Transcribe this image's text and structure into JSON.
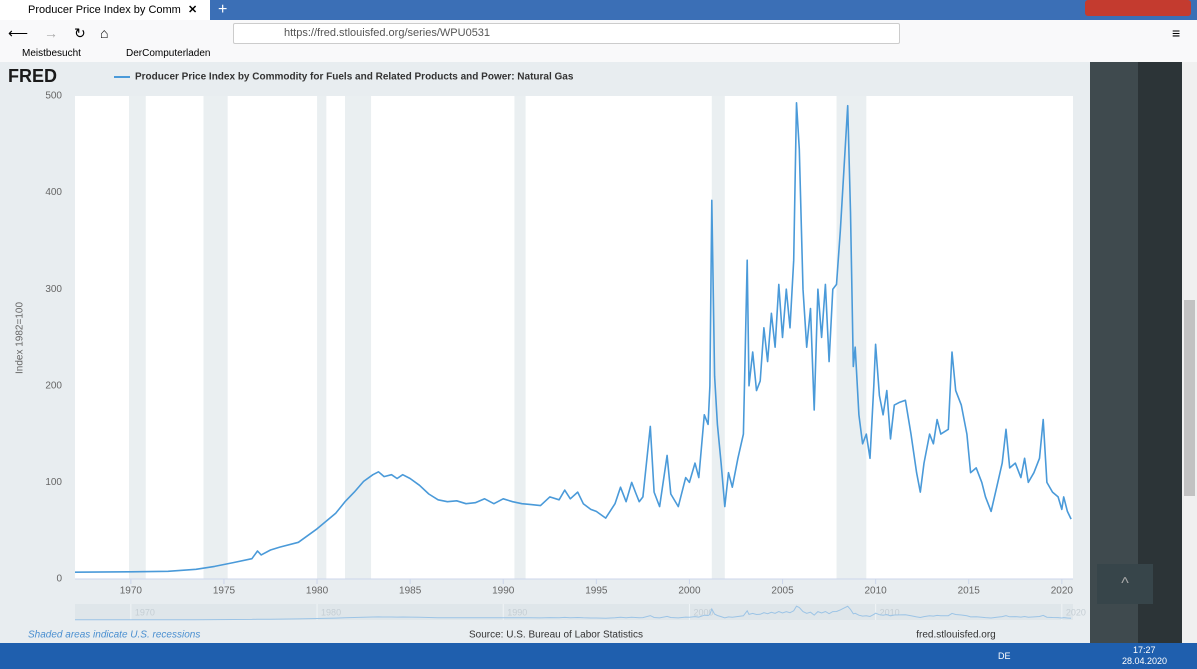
{
  "browser": {
    "tab_title": "Producer Price Index by Comm",
    "url": "https://fred.stlouisfed.org/series/WPU0531",
    "bookmarks": [
      "Meistbesucht",
      "DerComputerladen"
    ]
  },
  "page": {
    "logo": "FRED",
    "footer_note": "Shaded areas indicate U.S. recessions",
    "source": "Source: U.S. Bureau of Labor Statistics",
    "site": "fred.stlouisfed.org"
  },
  "taskbar": {
    "language": "DE",
    "time": "17:27",
    "date": "28.04.2020"
  },
  "chart_data": {
    "type": "line",
    "series": [
      {
        "name": "Producer Price Index by Commodity for Fuels and Related Products and Power: Natural Gas",
        "color": "#4a9ad9",
        "x": [
          1967,
          1970,
          1972,
          1973.5,
          1974.5,
          1975.5,
          1976.5,
          1976.8,
          1977,
          1977.5,
          1978,
          1979,
          1980,
          1981,
          1981.5,
          1982,
          1982.5,
          1983,
          1983.3,
          1983.6,
          1984,
          1984.3,
          1984.6,
          1985,
          1985.5,
          1986,
          1986.5,
          1987,
          1987.5,
          1988,
          1988.5,
          1989,
          1989.5,
          1990,
          1990.5,
          1991,
          1991.5,
          1992,
          1992.5,
          1993,
          1993.3,
          1993.6,
          1994,
          1994.3,
          1994.7,
          1995,
          1995.5,
          1996,
          1996.3,
          1996.6,
          1996.9,
          1997.1,
          1997.3,
          1997.5,
          1997.9,
          1998.1,
          1998.4,
          1998.8,
          1999,
          1999.4,
          1999.8,
          2000,
          2000.3,
          2000.5,
          2000.8,
          2001,
          2001.1,
          2001.2,
          2001.35,
          2001.5,
          2001.7,
          2001.9,
          2002.1,
          2002.3,
          2002.6,
          2002.9,
          2003.1,
          2003.2,
          2003.4,
          2003.6,
          2003.8,
          2004,
          2004.2,
          2004.4,
          2004.6,
          2004.8,
          2005,
          2005.2,
          2005.4,
          2005.6,
          2005.75,
          2005.9,
          2006.1,
          2006.3,
          2006.5,
          2006.7,
          2006.9,
          2007.1,
          2007.3,
          2007.5,
          2007.7,
          2007.9,
          2008.1,
          2008.3,
          2008.5,
          2008.65,
          2008.8,
          2008.9,
          2009.1,
          2009.3,
          2009.5,
          2009.7,
          2009.9,
          2010,
          2010.2,
          2010.4,
          2010.6,
          2010.8,
          2011,
          2011.3,
          2011.6,
          2011.9,
          2012.2,
          2012.4,
          2012.6,
          2012.9,
          2013.1,
          2013.3,
          2013.5,
          2013.9,
          2014.1,
          2014.3,
          2014.6,
          2014.9,
          2015.1,
          2015.4,
          2015.7,
          2015.9,
          2016.2,
          2016.5,
          2016.8,
          2017,
          2017.2,
          2017.5,
          2017.8,
          2018,
          2018.2,
          2018.5,
          2018.8,
          2019,
          2019.2,
          2019.5,
          2019.8,
          2020,
          2020.1,
          2020.3,
          2020.5
        ],
        "values": [
          7,
          7.5,
          8,
          10,
          13,
          17,
          21,
          29,
          25,
          30,
          33,
          38,
          52,
          68,
          80,
          90,
          101,
          108,
          111,
          106,
          108,
          104,
          108,
          104,
          97,
          88,
          82,
          80,
          81,
          78,
          79,
          83,
          78,
          83,
          80,
          78,
          77,
          76,
          85,
          82,
          92,
          83,
          90,
          78,
          72,
          70,
          63,
          78,
          95,
          80,
          100,
          90,
          80,
          85,
          158,
          90,
          75,
          128,
          88,
          75,
          105,
          100,
          120,
          105,
          170,
          160,
          200,
          392,
          210,
          160,
          120,
          75,
          110,
          95,
          125,
          150,
          330,
          200,
          235,
          195,
          205,
          260,
          225,
          275,
          240,
          305,
          250,
          300,
          260,
          330,
          493,
          445,
          300,
          240,
          280,
          175,
          300,
          250,
          305,
          225,
          300,
          305,
          360,
          425,
          490,
          380,
          220,
          240,
          170,
          140,
          150,
          125,
          200,
          243,
          190,
          170,
          195,
          145,
          180,
          183,
          185,
          150,
          110,
          90,
          120,
          150,
          140,
          165,
          150,
          155,
          235,
          195,
          180,
          150,
          110,
          115,
          100,
          85,
          70,
          95,
          120,
          155,
          115,
          120,
          105,
          125,
          100,
          110,
          125,
          165,
          100,
          90,
          85,
          72,
          85,
          70,
          62
        ]
      }
    ],
    "y_label": "Index 1982=100",
    "xlim": [
      1967,
      2020.6
    ],
    "ylim": [
      0,
      500
    ],
    "xticks": [
      1970,
      1975,
      1980,
      1985,
      1990,
      1995,
      2000,
      2005,
      2010,
      2015,
      2020
    ],
    "yticks": [
      0,
      100,
      200,
      300,
      400,
      500
    ],
    "navigator_ticks": [
      1970,
      1980,
      1990,
      2000,
      2010,
      2020
    ],
    "recessions": [
      [
        1969.9,
        1970.8
      ],
      [
        1973.9,
        1975.2
      ],
      [
        1980,
        1980.5
      ],
      [
        1981.5,
        1982.9
      ],
      [
        1990.6,
        1991.2
      ],
      [
        2001.2,
        2001.9
      ],
      [
        2007.9,
        2009.5
      ]
    ],
    "grid": false
  }
}
